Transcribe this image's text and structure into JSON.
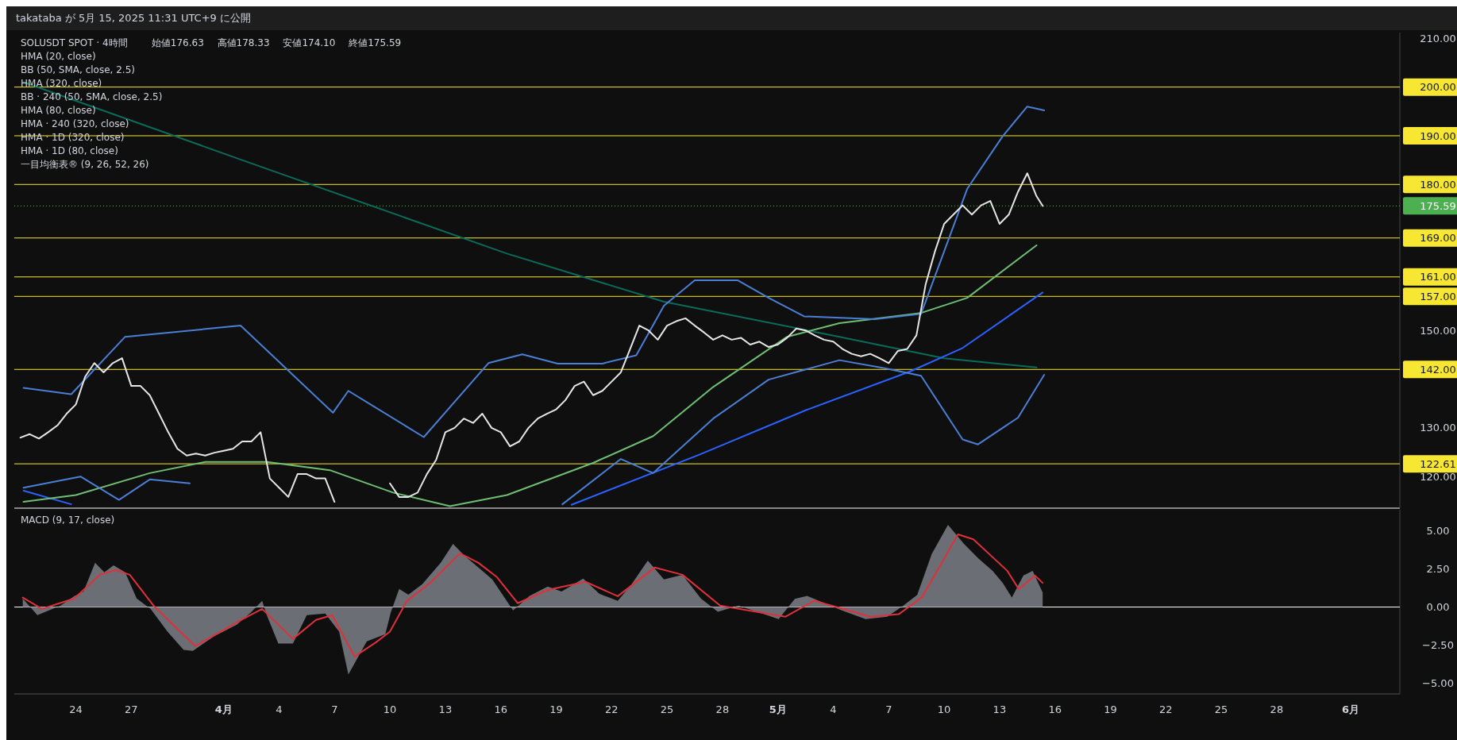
{
  "chart_data": [
    {
      "type": "line",
      "title": "SOLUSDT SPOT · 4時間",
      "annotations": [
        "takataba が 5月 15, 2025 11:31 UTC+9 に公開",
        "始値176.63",
        "高値178.33",
        "安値174.10",
        "終値175.59",
        "HMA (20, close)",
        "BB (50, SMA, close, 2.5)",
        "HMA (320, close)",
        "BB · 240 (50, SMA, close, 2.5)",
        "HMA (80, close)",
        "HMA · 240 (320, close)",
        "HMA · 1D (320, close)",
        "HMA · 1D (80, close)",
        "一目均衡表® (9, 26, 52, 26)"
      ],
      "xlim": [
        "2025-03-20T16:00",
        "2025-06-03T16:00"
      ],
      "ylim": [
        113.5,
        211.2
      ],
      "yticks": [
        {
          "value": 120,
          "label": "120.00"
        },
        {
          "value": 130,
          "label": "130.00"
        },
        {
          "value": 150,
          "label": "150.00"
        },
        {
          "value": 210,
          "label": "210.00"
        }
      ],
      "tick_labels": "y",
      "ref_lines": [
        {
          "axis": "y",
          "value": 200,
          "label": "200.00",
          "color": "#f7e733"
        },
        {
          "axis": "y",
          "value": 190,
          "label": "190.00",
          "color": "#f7e733"
        },
        {
          "axis": "y",
          "value": 180,
          "label": "180.00",
          "color": "#f7e733"
        },
        {
          "axis": "y",
          "value": 175.59,
          "label": "175.59",
          "color": "#4caf50",
          "line_style": "dotted"
        },
        {
          "axis": "y",
          "value": 169,
          "label": "169.00",
          "color": "#f7e733"
        },
        {
          "axis": "y",
          "value": 161,
          "label": "161.00",
          "color": "#f7e733"
        },
        {
          "axis": "y",
          "value": 157,
          "label": "157.00",
          "color": "#f7e733"
        },
        {
          "axis": "y",
          "value": 142,
          "label": "142.00",
          "color": "#f7e733"
        },
        {
          "axis": "y",
          "value": 122.61,
          "label": "122.61",
          "color": "#f7e733"
        }
      ],
      "series": [
        {
          "color": "#0b6b5a",
          "x": [
            "2025-03-21T04:00",
            "2025-04-02T16:00",
            "2025-04-16T08:00",
            "2025-04-24T20:00",
            "2025-05-04T08:00",
            "2025-05-10T00:00",
            "2025-05-15T00:00"
          ],
          "values": [
            201.0,
            184.1,
            165.8,
            155.9,
            148.7,
            144.3,
            142.4
          ]
        },
        {
          "color": "#2962ff",
          "x": [
            "2025-03-21T04:00",
            "2025-03-23T18:00",
            "2025-04-05T00:00",
            "2025-04-19T20:00",
            "2025-04-26T18:00",
            "2025-05-02T12:00",
            "2025-05-08T04:00",
            "2025-05-11T00:00",
            "2025-05-15T08:00"
          ],
          "values": [
            117.1,
            114.3,
            null,
            114.2,
            124.5,
            133.6,
            141.6,
            146.4,
            157.8
          ]
        },
        {
          "color": "#6fbf73",
          "x": [
            "2025-03-21T04:00",
            "2025-03-24",
            "2025-03-28",
            "2025-03-31",
            "2025-04-03T08:00",
            "2025-04-06T18:00",
            "2025-04-10T04:00",
            "2025-04-13T06:00",
            "2025-04-16T08:00",
            "2025-04-21",
            "2025-04-24T06:00",
            "2025-04-27T12:00",
            "2025-05-01T12:00",
            "2025-05-04T08:00",
            "2025-05-08T18:00",
            "2025-05-11T06:00",
            "2025-05-15"
          ],
          "values": [
            114.8,
            116.2,
            120.7,
            123.0,
            123.0,
            121.3,
            116.7,
            113.9,
            116.2,
            122.8,
            128.3,
            138.4,
            148.7,
            151.5,
            153.6,
            156.7,
            167.5
          ]
        },
        {
          "color": "#4a7fd6",
          "x": [
            "2025-03-21T04:00",
            "2025-03-23T18:00",
            "2025-03-26T16:00",
            "2025-04-01T22:00",
            "2025-04-06T22:00",
            "2025-04-07T18:00",
            "2025-04-11T20:00",
            "2025-04-15T08:00",
            "2025-04-17T04:00",
            "2025-04-19T02:00",
            "2025-04-21T12:00",
            "2025-04-23T08:00",
            "2025-04-24T20:00",
            "2025-04-26T12:00",
            "2025-04-28T20:00",
            "2025-04-30T12:00",
            "2025-05-02T10:00",
            "2025-05-06T06:00",
            "2025-05-08T18:00",
            "2025-05-11T06:00",
            "2025-05-13T04:00",
            "2025-05-14T12:00",
            "2025-05-15T10:00"
          ],
          "values": [
            138.2,
            136.9,
            148.7,
            151.0,
            133.1,
            137.6,
            128.1,
            143.3,
            145.1,
            143.2,
            143.2,
            144.9,
            155.1,
            160.3,
            160.3,
            156.7,
            152.9,
            152.3,
            153.4,
            179.1,
            189.9,
            196.0,
            195.2
          ]
        },
        {
          "color": "#4a7fd6",
          "x": [
            "2025-03-21T04:00",
            "2025-03-24T06:00",
            "2025-03-26T08:00",
            "2025-03-28",
            "2025-03-30T04:00",
            "2025-04-08",
            "2025-04-19T08:00",
            "2025-04-22T12:00",
            "2025-04-24T06:00",
            "2025-04-27T12:00",
            "2025-04-30T12:00",
            "2025-05-04T08:00",
            "2025-05-06T20:00",
            "2025-05-08T18:00",
            "2025-05-11",
            "2025-05-11T20:00",
            "2025-05-14",
            "2025-05-15T10:00"
          ],
          "values": [
            117.7,
            120.0,
            115.2,
            119.4,
            118.6,
            null,
            114.3,
            123.6,
            120.7,
            131.9,
            139.9,
            143.9,
            142.2,
            140.7,
            127.6,
            126.6,
            132.1,
            140.9
          ]
        },
        {
          "color": "#e6e6e6",
          "x": [
            "2025-03-21",
            "2025-03-21T12:00",
            "2025-03-22",
            "2025-03-22T12:00",
            "2025-03-23",
            "2025-03-23T12:00",
            "2025-03-24",
            "2025-03-24T12:00",
            "2025-03-25",
            "2025-03-25T12:00",
            "2025-03-26",
            "2025-03-26T12:00",
            "2025-03-27",
            "2025-03-27T12:00",
            "2025-03-28",
            "2025-03-28T12:00",
            "2025-03-29",
            "2025-03-29T12:00",
            "2025-03-30",
            "2025-03-30T12:00",
            "2025-03-31",
            "2025-03-31T12:00",
            "2025-04-01",
            "2025-04-01T12:00",
            "2025-04-02",
            "2025-04-02T12:00",
            "2025-04-03",
            "2025-04-03T12:00",
            "2025-04-04",
            "2025-04-04T12:00",
            "2025-04-05",
            "2025-04-05T12:00",
            "2025-04-06",
            "2025-04-06T12:00",
            "2025-04-07",
            "2025-04-07T12:00",
            "2025-04-08",
            "2025-04-08T12:00",
            "2025-04-09",
            "2025-04-09T12:00",
            "2025-04-10",
            "2025-04-10T12:00",
            "2025-04-11",
            "2025-04-11T12:00",
            "2025-04-12",
            "2025-04-12T12:00",
            "2025-04-13",
            "2025-04-13T12:00",
            "2025-04-14",
            "2025-04-14T12:00",
            "2025-04-15",
            "2025-04-15T12:00",
            "2025-04-16",
            "2025-04-16T12:00",
            "2025-04-17",
            "2025-04-17T12:00",
            "2025-04-18",
            "2025-04-18T12:00",
            "2025-04-19",
            "2025-04-19T12:00",
            "2025-04-20",
            "2025-04-20T12:00",
            "2025-04-21",
            "2025-04-21T12:00",
            "2025-04-22",
            "2025-04-22T12:00",
            "2025-04-23",
            "2025-04-23T12:00",
            "2025-04-24",
            "2025-04-24T12:00",
            "2025-04-25",
            "2025-04-25T12:00",
            "2025-04-26",
            "2025-04-26T12:00",
            "2025-04-27",
            "2025-04-27T12:00",
            "2025-04-28",
            "2025-04-28T12:00",
            "2025-04-29",
            "2025-04-29T12:00",
            "2025-04-30",
            "2025-04-30T12:00",
            "2025-05-01",
            "2025-05-01T12:00",
            "2025-05-02",
            "2025-05-02T12:00",
            "2025-05-03",
            "2025-05-03T12:00",
            "2025-05-04",
            "2025-05-04T12:00",
            "2025-05-05",
            "2025-05-05T12:00",
            "2025-05-06",
            "2025-05-06T12:00",
            "2025-05-07",
            "2025-05-07T12:00",
            "2025-05-08",
            "2025-05-08T12:00",
            "2025-05-09",
            "2025-05-09T12:00",
            "2025-05-10",
            "2025-05-10T12:00",
            "2025-05-11",
            "2025-05-11T12:00",
            "2025-05-12",
            "2025-05-12T12:00",
            "2025-05-13",
            "2025-05-13T12:00",
            "2025-05-14",
            "2025-05-14T12:00",
            "2025-05-15",
            "2025-05-15T08:00"
          ],
          "values": [
            128.0,
            128.7,
            127.8,
            129.1,
            130.5,
            132.9,
            134.8,
            140.5,
            143.3,
            141.4,
            143.3,
            144.3,
            138.6,
            138.6,
            136.7,
            132.9,
            129.1,
            125.7,
            124.3,
            124.7,
            124.3,
            124.9,
            125.3,
            125.7,
            127.2,
            127.2,
            129.1,
            119.6,
            117.7,
            115.8,
            120.5,
            120.5,
            119.6,
            119.6,
            114.8,
            null,
            null,
            null,
            null,
            null,
            118.6,
            115.8,
            115.8,
            116.7,
            120.5,
            123.4,
            129.1,
            130.0,
            131.9,
            131.0,
            132.9,
            130.0,
            129.1,
            126.2,
            127.2,
            130.0,
            131.9,
            132.9,
            133.8,
            135.7,
            138.6,
            139.5,
            136.7,
            137.6,
            139.5,
            141.4,
            146.2,
            151.0,
            150.0,
            148.1,
            151.0,
            151.9,
            152.5,
            151.0,
            149.6,
            148.1,
            149.0,
            148.1,
            148.5,
            147.1,
            147.7,
            146.6,
            147.1,
            148.5,
            150.4,
            150.0,
            149.0,
            148.1,
            147.7,
            146.2,
            145.2,
            144.7,
            145.2,
            144.3,
            143.3,
            145.8,
            146.2,
            149.0,
            159.5,
            166.2,
            171.9,
            173.8,
            175.7,
            173.8,
            175.7,
            176.6,
            171.9,
            173.8,
            178.5,
            182.3,
            177.6,
            175.59
          ]
        }
      ]
    },
    {
      "type": "area",
      "title": "MACD (9, 17, close)",
      "xlim": [
        "2025-03-20T16:00",
        "2025-06-03T16:00"
      ],
      "ylim": [
        -5.68,
        6.36
      ],
      "yticks": [
        {
          "value": -5,
          "label": "−5.00"
        },
        {
          "value": -2.5,
          "label": "−2.50"
        },
        {
          "value": 0,
          "label": "0.00"
        },
        {
          "value": 2.5,
          "label": "2.50"
        },
        {
          "value": 5,
          "label": "5.00"
        }
      ],
      "xticks": [
        {
          "value": "2025-03-24",
          "label": "24"
        },
        {
          "value": "2025-03-27",
          "label": "27"
        },
        {
          "value": "2025-04-01",
          "label": "4月"
        },
        {
          "value": "2025-04-04",
          "label": "4"
        },
        {
          "value": "2025-04-07",
          "label": "7"
        },
        {
          "value": "2025-04-10",
          "label": "10"
        },
        {
          "value": "2025-04-13",
          "label": "13"
        },
        {
          "value": "2025-04-16",
          "label": "16"
        },
        {
          "value": "2025-04-19",
          "label": "19"
        },
        {
          "value": "2025-04-22",
          "label": "22"
        },
        {
          "value": "2025-04-25",
          "label": "25"
        },
        {
          "value": "2025-04-28",
          "label": "28"
        },
        {
          "value": "2025-05-01",
          "label": "5月"
        },
        {
          "value": "2025-05-04",
          "label": "4"
        },
        {
          "value": "2025-05-07",
          "label": "7"
        },
        {
          "value": "2025-05-10",
          "label": "10"
        },
        {
          "value": "2025-05-13",
          "label": "13"
        },
        {
          "value": "2025-05-16",
          "label": "16"
        },
        {
          "value": "2025-05-19",
          "label": "19"
        },
        {
          "value": "2025-05-22",
          "label": "22"
        },
        {
          "value": "2025-05-25",
          "label": "25"
        },
        {
          "value": "2025-05-28",
          "label": "28"
        },
        {
          "value": "2025-06-01",
          "label": "6月"
        }
      ],
      "ref_lines": [
        {
          "axis": "y",
          "value": 0,
          "color": "#ffffff"
        }
      ],
      "series": [
        {
          "color": "#6b6e74",
          "x": [
            "2025-03-21T03:00",
            "2025-03-21T22:00",
            "2025-03-23T04:00",
            "2025-03-23T22:00",
            "2025-03-24T10:00",
            "2025-03-25T01:00",
            "2025-03-25T13:00",
            "2025-03-26T01:00",
            "2025-03-26T16:00",
            "2025-03-27T07:00",
            "2025-03-28T01:00",
            "2025-03-28T23:00",
            "2025-03-29T20:00",
            "2025-03-30T08:00",
            "2025-03-31T11:00",
            "2025-04-01T17:00",
            "2025-04-02T11:00",
            "2025-04-03T02:00",
            "2025-04-03T08:00",
            "2025-04-03T23:00",
            "2025-04-04T18:00",
            "2025-04-05T12:00",
            "2025-04-06T12:00",
            "2025-04-07T06:00",
            "2025-04-07T18:00",
            "2025-04-08T18:00",
            "2025-04-09T18:00",
            "2025-04-10T01:00",
            "2025-04-10T12:00",
            "2025-04-11T00:00",
            "2025-04-11T18:00",
            "2025-04-12T18:00",
            "2025-04-13T10:00",
            "2025-04-14T01:00",
            "2025-04-14T19:00",
            "2025-04-15T13:00",
            "2025-04-16T16:00",
            "2025-04-17T13:00",
            "2025-04-18T13:00",
            "2025-04-19T07:00",
            "2025-04-20T11:00",
            "2025-04-21T08:00",
            "2025-04-22T08:00",
            "2025-04-23T02:00",
            "2025-04-23T23:00",
            "2025-04-24T20:00",
            "2025-04-25T20:00",
            "2025-04-26T20:00",
            "2025-04-27T18:00",
            "2025-04-28T21:00",
            "2025-05-01T01:00",
            "2025-05-01T22:00",
            "2025-05-02T14:00",
            "2025-05-04T11:00",
            "2025-05-05T18:00",
            "2025-05-06T22:00",
            "2025-05-07T19:00",
            "2025-05-08T13:00",
            "2025-05-09T08:00",
            "2025-05-10T05:00",
            "2025-05-11T02:00",
            "2025-05-11T21:00",
            "2025-05-12T15:00",
            "2025-05-13T04:00",
            "2025-05-13T16:00",
            "2025-05-14T07:00",
            "2025-05-14T19:00",
            "2025-05-15T08:00"
          ],
          "values": [
            0.56,
            -0.53,
            0.09,
            0.71,
            1.02,
            2.89,
            2.27,
            2.73,
            2.27,
            0.56,
            -0.12,
            -1.61,
            -2.8,
            -2.86,
            -1.93,
            -1.15,
            -0.37,
            0.4,
            -0.53,
            -2.39,
            -2.39,
            -0.53,
            -0.43,
            -1.61,
            -4.41,
            -2.24,
            -1.77,
            -0.37,
            1.18,
            0.81,
            1.49,
            2.89,
            4.13,
            3.35,
            2.58,
            1.8,
            -0.22,
            0.71,
            1.34,
            1.02,
            1.86,
            0.87,
            0.4,
            1.49,
            3.04,
            1.8,
            2.11,
            0.56,
            -0.31,
            0.09,
            -0.79,
            0.54,
            0.73,
            -0.22,
            -0.79,
            -0.63,
            0.09,
            0.79,
            3.48,
            5.38,
            4.11,
            3.16,
            2.37,
            1.58,
            0.63,
            2.06,
            2.37,
            0.95
          ]
        },
        {
          "type": "line",
          "color": "#e0303a",
          "x": [
            "2025-03-21T03:00",
            "2025-03-22T04:00",
            "2025-03-23T22:00",
            "2025-03-25T07:00",
            "2025-03-26T04:00",
            "2025-03-26T22:00",
            "2025-03-28T05:00",
            "2025-03-30T11:00",
            "2025-04-01T23:00",
            "2025-04-03T02:00",
            "2025-04-04T18:00",
            "2025-04-06T00:00",
            "2025-04-06T21:00",
            "2025-04-08T02:00",
            "2025-04-09T06:00",
            "2025-04-10T00:00",
            "2025-04-10T22:00",
            "2025-04-12T06:00",
            "2025-04-13T19:00",
            "2025-04-14T19:00",
            "2025-04-15T19:00",
            "2025-04-16T22:00",
            "2025-04-18T13:00",
            "2025-04-20T14:00",
            "2025-04-22T08:00",
            "2025-04-24T08:00",
            "2025-04-25T20:00",
            "2025-04-27T21:00",
            "2025-05-01T10:00",
            "2025-05-02T23:00",
            "2025-05-04T11:00",
            "2025-05-06T00:00",
            "2025-05-07T13:00",
            "2025-05-08T19:00",
            "2025-05-10T18:00",
            "2025-05-11T14:00",
            "2025-05-13T10:00",
            "2025-05-14T01:00",
            "2025-05-14T22:00",
            "2025-05-15T08:00"
          ],
          "values": [
            0.62,
            -0.12,
            0.56,
            2.11,
            2.42,
            2.11,
            0.09,
            -2.55,
            -0.84,
            -0.12,
            -2.08,
            -0.84,
            -0.53,
            -3.23,
            -2.3,
            -1.61,
            0.4,
            1.65,
            3.51,
            2.89,
            1.96,
            0.25,
            1.12,
            1.65,
            0.71,
            2.58,
            2.11,
            0.09,
            -0.63,
            0.41,
            -0.09,
            -0.63,
            -0.47,
            0.63,
            4.75,
            4.43,
            2.37,
            1.17,
            2.06,
            1.58
          ]
        }
      ]
    }
  ]
}
